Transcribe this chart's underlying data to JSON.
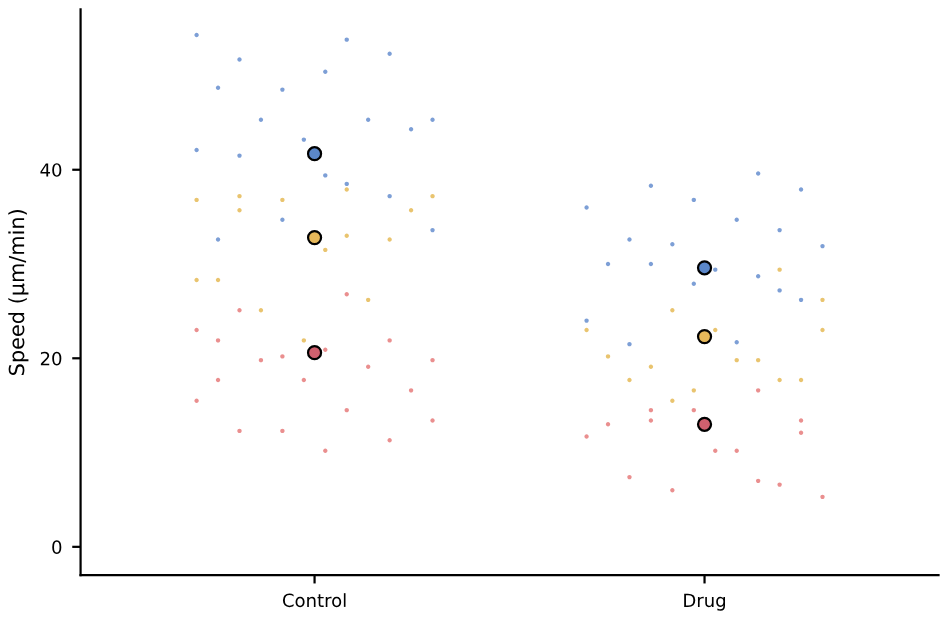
{
  "chart_data": {
    "type": "scatter",
    "ylabel": "Speed (µm/min)",
    "categories": [
      "Control",
      "Drug"
    ],
    "ylim": [
      -3,
      57
    ],
    "yticks": [
      0,
      20,
      40
    ],
    "grid": false,
    "marker": "circle",
    "series": [
      {
        "color": "#7d9fd6",
        "x": [
          "Control",
          "Control",
          "Control",
          "Control",
          "Control",
          "Control",
          "Control",
          "Control",
          "Control",
          "Control",
          "Control",
          "Control",
          "Control",
          "Control",
          "Control",
          "Control",
          "Control",
          "Control",
          "Control",
          "Control",
          "Drug",
          "Drug",
          "Drug",
          "Drug",
          "Drug",
          "Drug",
          "Drug",
          "Drug",
          "Drug",
          "Drug",
          "Drug",
          "Drug",
          "Drug",
          "Drug",
          "Drug",
          "Drug",
          "Drug",
          "Drug",
          "Drug",
          "Drug"
        ],
        "values": [
          54.3,
          53.8,
          51.7,
          52.3,
          48.5,
          45.3,
          50.4,
          48.7,
          45.3,
          45.3,
          44.3,
          43.2,
          42.1,
          38.5,
          41.5,
          37.2,
          34.7,
          33.6,
          39.4,
          32.6,
          39.6,
          38.3,
          37.9,
          36.8,
          36.0,
          34.7,
          32.6,
          33.6,
          32.1,
          31.9,
          29.4,
          30.0,
          28.7,
          30.0,
          26.2,
          27.9,
          24.0,
          21.7,
          21.5,
          27.2
        ]
      },
      {
        "color": "#e9c46f",
        "x": [
          "Control",
          "Control",
          "Control",
          "Control",
          "Control",
          "Control",
          "Control",
          "Control",
          "Control",
          "Control",
          "Control",
          "Control",
          "Control",
          "Control",
          "Control",
          "Drug",
          "Drug",
          "Drug",
          "Drug",
          "Drug",
          "Drug",
          "Drug",
          "Drug",
          "Drug",
          "Drug",
          "Drug",
          "Drug",
          "Drug",
          "Drug",
          "Drug"
        ],
        "values": [
          36.8,
          37.9,
          37.2,
          32.6,
          36.8,
          37.2,
          31.5,
          28.3,
          26.2,
          25.1,
          35.7,
          21.9,
          28.3,
          33.0,
          35.7,
          29.4,
          25.1,
          26.2,
          23.0,
          20.2,
          19.8,
          19.1,
          17.7,
          16.6,
          23.0,
          19.8,
          17.7,
          17.7,
          15.5,
          23.0
        ]
      },
      {
        "color": "#ea8f8f",
        "x": [
          "Control",
          "Control",
          "Control",
          "Control",
          "Control",
          "Control",
          "Control",
          "Control",
          "Control",
          "Control",
          "Control",
          "Control",
          "Control",
          "Control",
          "Control",
          "Control",
          "Control",
          "Control",
          "Control",
          "Control",
          "Drug",
          "Drug",
          "Drug",
          "Drug",
          "Drug",
          "Drug",
          "Drug",
          "Drug",
          "Drug",
          "Drug",
          "Drug",
          "Drug",
          "Drug",
          "Drug",
          "Drug"
        ],
        "values": [
          23.0,
          26.8,
          25.1,
          21.9,
          20.2,
          19.8,
          20.9,
          21.9,
          19.1,
          19.8,
          16.6,
          17.7,
          15.5,
          14.5,
          12.3,
          11.3,
          12.3,
          13.4,
          10.2,
          17.7,
          16.6,
          13.4,
          12.1,
          14.5,
          11.7,
          10.2,
          7.4,
          6.6,
          6.0,
          5.3,
          10.2,
          13.0,
          7.0,
          14.5,
          13.4
        ]
      },
      {
        "color": "#5b87c9",
        "values": [
          41.7,
          29.6
        ]
      },
      {
        "color": "#e6b85a",
        "values": [
          32.8,
          22.3
        ]
      },
      {
        "color": "#d0606e",
        "values": [
          20.6,
          13.0
        ]
      }
    ]
  }
}
